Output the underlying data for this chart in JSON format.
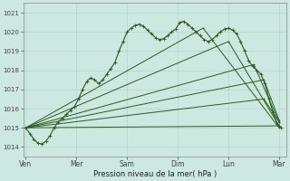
{
  "bg_color": "#cce8e0",
  "grid_color": "#aad4cc",
  "line_color": "#2d5a1e",
  "ylim": [
    1013.5,
    1021.5
  ],
  "yticks": [
    1014,
    1015,
    1016,
    1017,
    1018,
    1019,
    1020,
    1021
  ],
  "xlabel": "Pression niveau de la mer( hPa )",
  "xtick_labels": [
    "Ven",
    "Mer",
    "Sam",
    "Dim",
    "Lun",
    "Mar"
  ],
  "xtick_pos": [
    0,
    1,
    2,
    3,
    4,
    5
  ],
  "xlim": [
    -0.05,
    5.15
  ],
  "main_line": {
    "x": [
      0.0,
      0.08,
      0.16,
      0.24,
      0.32,
      0.4,
      0.48,
      0.56,
      0.64,
      0.72,
      0.8,
      0.88,
      0.96,
      1.04,
      1.12,
      1.2,
      1.28,
      1.36,
      1.44,
      1.52,
      1.6,
      1.68,
      1.76,
      1.84,
      1.92,
      2.0,
      2.08,
      2.16,
      2.24,
      2.32,
      2.4,
      2.48,
      2.56,
      2.64,
      2.72,
      2.8,
      2.88,
      2.96,
      3.04,
      3.12,
      3.2,
      3.28,
      3.36,
      3.44,
      3.52,
      3.6,
      3.68,
      3.76,
      3.84,
      3.92,
      4.0,
      4.08,
      4.16,
      4.24,
      4.32,
      4.4,
      4.48,
      4.56,
      4.64,
      4.72,
      4.8,
      4.88,
      4.96,
      5.04
    ],
    "y": [
      1015.0,
      1014.7,
      1014.4,
      1014.2,
      1014.15,
      1014.3,
      1014.6,
      1015.0,
      1015.3,
      1015.5,
      1015.7,
      1015.9,
      1016.1,
      1016.5,
      1017.0,
      1017.4,
      1017.6,
      1017.5,
      1017.3,
      1017.5,
      1017.8,
      1018.1,
      1018.4,
      1019.0,
      1019.5,
      1020.0,
      1020.2,
      1020.35,
      1020.4,
      1020.3,
      1020.1,
      1019.9,
      1019.7,
      1019.6,
      1019.65,
      1019.8,
      1020.0,
      1020.15,
      1020.5,
      1020.55,
      1020.4,
      1020.2,
      1020.0,
      1019.8,
      1019.6,
      1019.5,
      1019.6,
      1019.8,
      1020.0,
      1020.15,
      1020.2,
      1020.1,
      1019.9,
      1019.5,
      1019.0,
      1018.5,
      1018.2,
      1018.0,
      1017.8,
      1017.3,
      1016.5,
      1015.8,
      1015.2,
      1015.0
    ]
  },
  "fan_lines": [
    {
      "x": [
        0.0,
        3.5,
        5.0
      ],
      "y": [
        1015.0,
        1020.2,
        1015.0
      ]
    },
    {
      "x": [
        0.0,
        4.0,
        5.0
      ],
      "y": [
        1015.0,
        1019.5,
        1015.1
      ]
    },
    {
      "x": [
        0.0,
        4.5,
        5.0
      ],
      "y": [
        1015.0,
        1018.3,
        1015.3
      ]
    },
    {
      "x": [
        0.0,
        4.7,
        5.0
      ],
      "y": [
        1015.0,
        1017.5,
        1015.4
      ]
    },
    {
      "x": [
        0.0,
        4.7,
        5.0
      ],
      "y": [
        1015.0,
        1016.5,
        1015.3
      ]
    },
    {
      "x": [
        0.0,
        5.0
      ],
      "y": [
        1015.0,
        1015.1
      ]
    }
  ]
}
